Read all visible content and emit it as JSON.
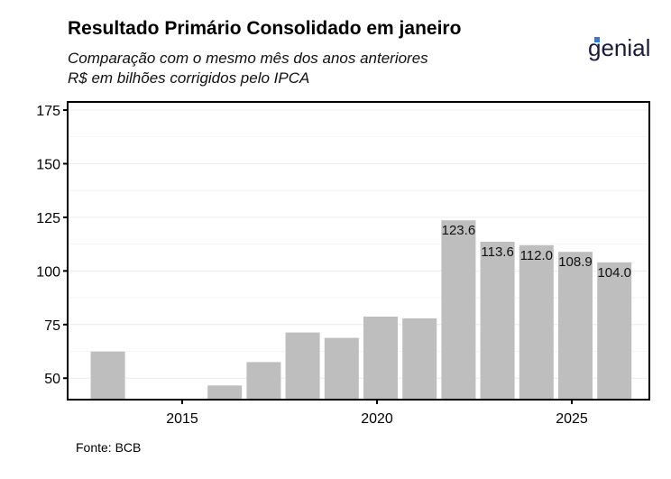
{
  "chart_data": {
    "type": "bar",
    "title": "Resultado Primário Consolidado em janeiro",
    "subtitle": "Comparação com o mesmo mês dos anos anteriores",
    "subtitle2": "R$ em bilhões corrigidos pelo IPCA",
    "source": "Fonte: BCB",
    "logo": "genial",
    "x": [
      2013,
      2014,
      2015,
      2016,
      2017,
      2018,
      2019,
      2020,
      2021,
      2022,
      2023,
      2024,
      2025,
      2026
    ],
    "values": [
      62.4,
      null,
      null,
      46.6,
      57.5,
      71.3,
      68.8,
      78.7,
      77.9,
      123.6,
      113.6,
      112.0,
      108.9,
      104.0
    ],
    "data_labels": {
      "2022": "123.6",
      "2023": "113.6",
      "2024": "112.0",
      "2025": "108.9",
      "2026": "104.0"
    },
    "xticks": [
      "2015",
      "2020",
      "2025"
    ],
    "yticks": [
      "50",
      "75",
      "100",
      "125",
      "150",
      "175"
    ],
    "ylim": [
      40,
      178.8
    ],
    "xlabel": "",
    "ylabel": "",
    "bar_color": "#bebebe",
    "grid": true
  }
}
